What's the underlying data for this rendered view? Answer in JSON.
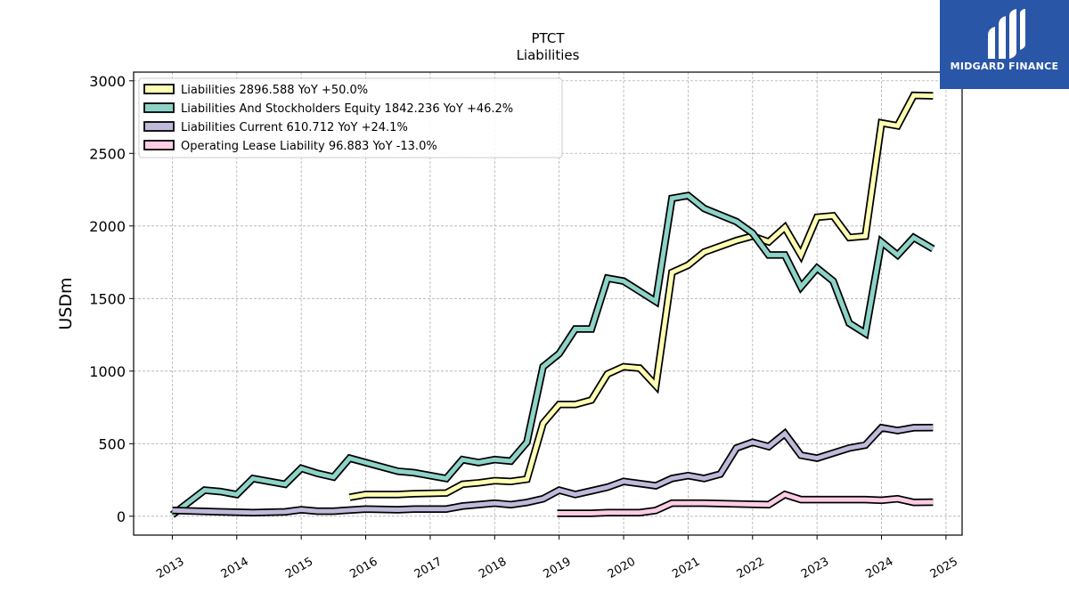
{
  "brand": {
    "name": "MIDGARD FINANCE",
    "bg": "#2a56a8"
  },
  "chart_data": {
    "type": "line",
    "title": "PTCT",
    "subtitle": "Liabilities",
    "ylabel": "USDm",
    "xlabel": "",
    "ylim": [
      -130,
      3060
    ],
    "xlim": [
      2012.4,
      2025.25
    ],
    "yticks": [
      0,
      500,
      1000,
      1500,
      2000,
      2500,
      3000
    ],
    "xticks": [
      "2013",
      "2014",
      "2015",
      "2016",
      "2017",
      "2018",
      "2019",
      "2020",
      "2021",
      "2022",
      "2023",
      "2024",
      "2025"
    ],
    "grid": true,
    "legend_position": "top-left",
    "series": [
      {
        "name": "Liabilities",
        "legend": "Liabilities  2896.588 YoY +50.0%",
        "color": "#ffffb3",
        "points": [
          [
            2015.75,
            130
          ],
          [
            2016.0,
            150
          ],
          [
            2016.5,
            150
          ],
          [
            2016.75,
            155
          ],
          [
            2017.25,
            160
          ],
          [
            2017.5,
            220
          ],
          [
            2017.75,
            230
          ],
          [
            2018.0,
            245
          ],
          [
            2018.25,
            240
          ],
          [
            2018.5,
            255
          ],
          [
            2018.75,
            640
          ],
          [
            2019.0,
            770
          ],
          [
            2019.25,
            770
          ],
          [
            2019.5,
            800
          ],
          [
            2019.75,
            980
          ],
          [
            2020.0,
            1030
          ],
          [
            2020.25,
            1020
          ],
          [
            2020.5,
            900
          ],
          [
            2020.75,
            1680
          ],
          [
            2021.0,
            1730
          ],
          [
            2021.25,
            1820
          ],
          [
            2021.5,
            1860
          ],
          [
            2021.75,
            1900
          ],
          [
            2022.0,
            1930
          ],
          [
            2022.25,
            1890
          ],
          [
            2022.5,
            1990
          ],
          [
            2022.75,
            1800
          ],
          [
            2023.0,
            2060
          ],
          [
            2023.25,
            2070
          ],
          [
            2023.5,
            1920
          ],
          [
            2023.75,
            1930
          ],
          [
            2024.0,
            2710
          ],
          [
            2024.25,
            2690
          ],
          [
            2024.5,
            2900
          ],
          [
            2024.8,
            2897
          ]
        ]
      },
      {
        "name": "Liabilities And Stockholders Equity",
        "legend": "Liabilities And Stockholders Equity  1842.236 YoY +46.2%",
        "color": "#8dd3c7",
        "points": [
          [
            2013.0,
            10
          ],
          [
            2013.5,
            180
          ],
          [
            2013.75,
            170
          ],
          [
            2014.0,
            150
          ],
          [
            2014.25,
            260
          ],
          [
            2014.5,
            240
          ],
          [
            2014.75,
            220
          ],
          [
            2015.0,
            330
          ],
          [
            2015.25,
            295
          ],
          [
            2015.5,
            270
          ],
          [
            2015.75,
            400
          ],
          [
            2016.0,
            370
          ],
          [
            2016.5,
            310
          ],
          [
            2016.75,
            300
          ],
          [
            2017.25,
            260
          ],
          [
            2017.5,
            390
          ],
          [
            2017.75,
            370
          ],
          [
            2018.0,
            390
          ],
          [
            2018.25,
            380
          ],
          [
            2018.5,
            510
          ],
          [
            2018.75,
            1030
          ],
          [
            2019.0,
            1120
          ],
          [
            2019.25,
            1290
          ],
          [
            2019.5,
            1290
          ],
          [
            2019.75,
            1640
          ],
          [
            2020.0,
            1620
          ],
          [
            2020.5,
            1480
          ],
          [
            2020.75,
            2190
          ],
          [
            2021.0,
            2210
          ],
          [
            2021.25,
            2120
          ],
          [
            2021.75,
            2030
          ],
          [
            2022.0,
            1950
          ],
          [
            2022.25,
            1800
          ],
          [
            2022.5,
            1800
          ],
          [
            2022.75,
            1580
          ],
          [
            2023.0,
            1710
          ],
          [
            2023.25,
            1620
          ],
          [
            2023.5,
            1330
          ],
          [
            2023.75,
            1260
          ],
          [
            2024.0,
            1890
          ],
          [
            2024.25,
            1800
          ],
          [
            2024.5,
            1920
          ],
          [
            2024.8,
            1842
          ]
        ]
      },
      {
        "name": "Liabilities Current",
        "legend": "Liabilities Current  610.712 YoY +24.1%",
        "color": "#bebada",
        "points": [
          [
            2013.0,
            40
          ],
          [
            2013.75,
            30
          ],
          [
            2014.25,
            25
          ],
          [
            2014.75,
            30
          ],
          [
            2015.0,
            45
          ],
          [
            2015.25,
            35
          ],
          [
            2015.5,
            35
          ],
          [
            2016.0,
            50
          ],
          [
            2016.5,
            45
          ],
          [
            2016.75,
            50
          ],
          [
            2017.25,
            50
          ],
          [
            2017.5,
            70
          ],
          [
            2018.0,
            90
          ],
          [
            2018.25,
            80
          ],
          [
            2018.5,
            95
          ],
          [
            2018.75,
            120
          ],
          [
            2019.0,
            180
          ],
          [
            2019.25,
            150
          ],
          [
            2019.5,
            175
          ],
          [
            2019.75,
            200
          ],
          [
            2020.0,
            240
          ],
          [
            2020.5,
            210
          ],
          [
            2020.75,
            260
          ],
          [
            2021.0,
            280
          ],
          [
            2021.25,
            260
          ],
          [
            2021.5,
            290
          ],
          [
            2021.75,
            470
          ],
          [
            2022.0,
            510
          ],
          [
            2022.25,
            480
          ],
          [
            2022.5,
            570
          ],
          [
            2022.75,
            420
          ],
          [
            2023.0,
            400
          ],
          [
            2023.5,
            470
          ],
          [
            2023.75,
            490
          ],
          [
            2024.0,
            610
          ],
          [
            2024.25,
            590
          ],
          [
            2024.5,
            610
          ],
          [
            2024.8,
            611
          ]
        ]
      },
      {
        "name": "Operating Lease Liability",
        "legend": "Operating Lease Liability  96.883 YoY -13.0%",
        "color": "#fccde5",
        "points": [
          [
            2018.97,
            20
          ],
          [
            2019.5,
            20
          ],
          [
            2019.75,
            25
          ],
          [
            2020.25,
            25
          ],
          [
            2020.5,
            40
          ],
          [
            2020.75,
            90
          ],
          [
            2021.25,
            90
          ],
          [
            2021.75,
            85
          ],
          [
            2022.25,
            80
          ],
          [
            2022.5,
            150
          ],
          [
            2022.75,
            115
          ],
          [
            2023.25,
            115
          ],
          [
            2023.75,
            115
          ],
          [
            2024.0,
            110
          ],
          [
            2024.25,
            120
          ],
          [
            2024.5,
            95
          ],
          [
            2024.8,
            97
          ]
        ]
      }
    ]
  }
}
